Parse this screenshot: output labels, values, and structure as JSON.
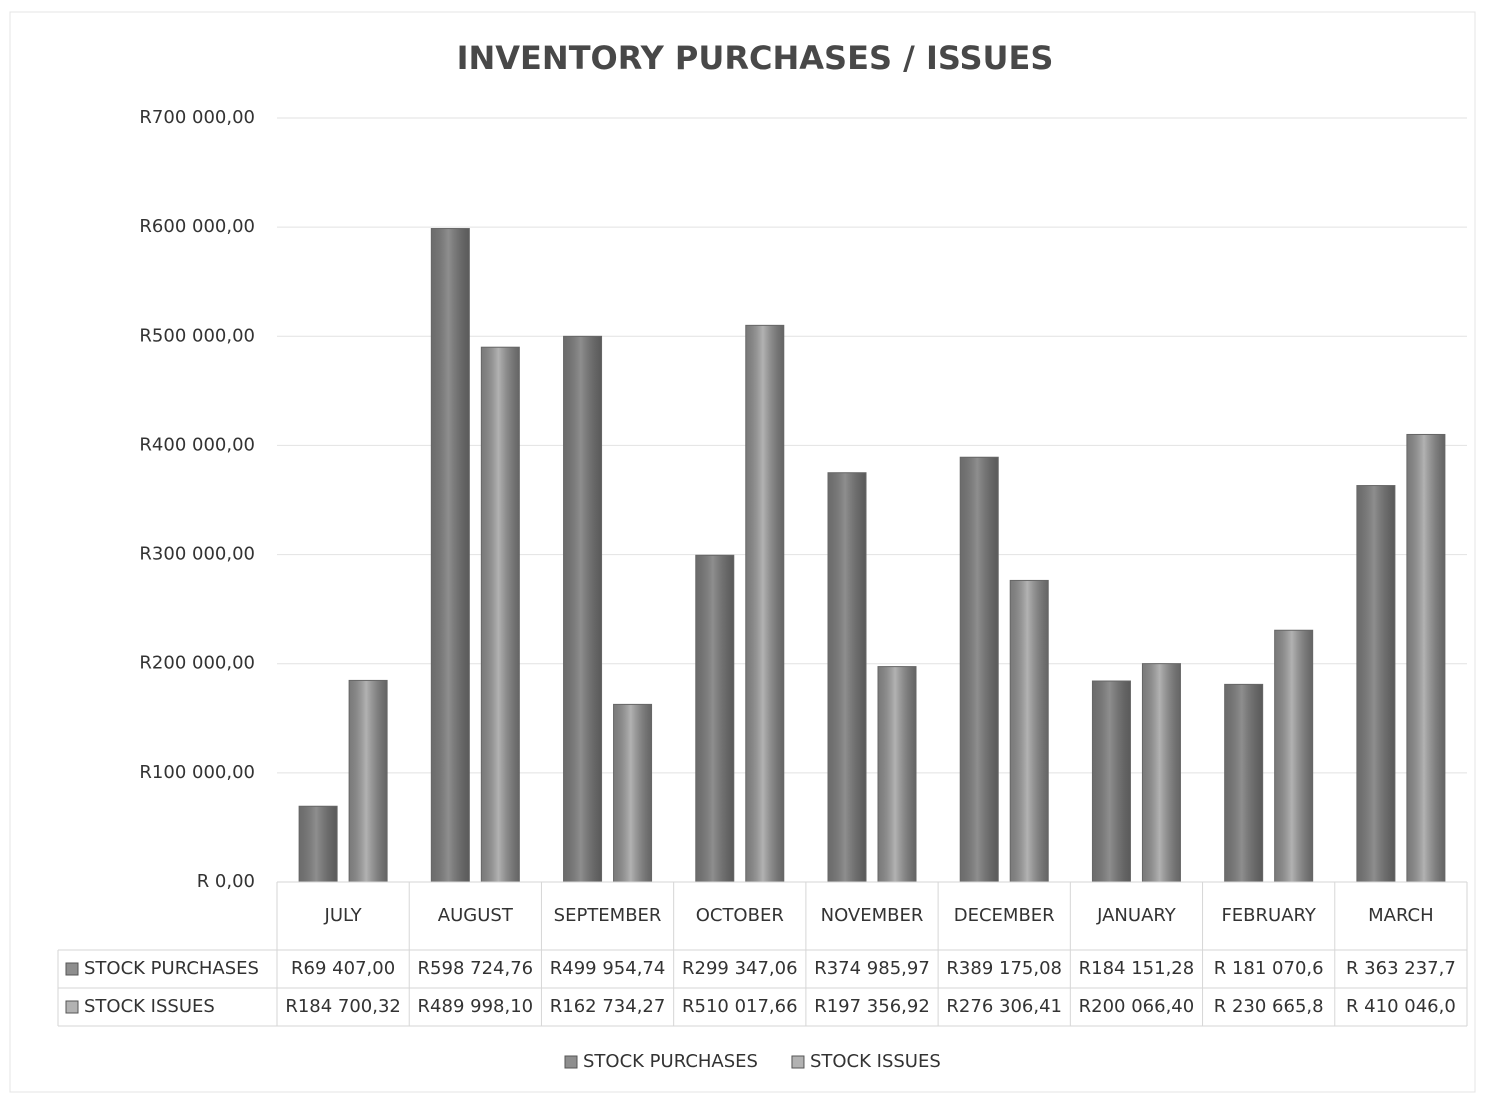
{
  "chart_data": {
    "type": "bar",
    "title": "INVENTORY PURCHASES / ISSUES",
    "categories": [
      "JULY",
      "AUGUST",
      "SEPTEMBER",
      "OCTOBER",
      "NOVEMBER",
      "DECEMBER",
      "JANUARY",
      "FEBRUARY",
      "MARCH"
    ],
    "series": [
      {
        "name": "STOCK PURCHASES",
        "color": "#8e8e8e",
        "values": [
          69407.0,
          598724.76,
          499954.74,
          299347.06,
          374985.97,
          389175.08,
          184151.28,
          181070.6,
          363237.7
        ],
        "value_labels": [
          "R69 407,00",
          "R598 724,76",
          "R499 954,74",
          "R299 347,06",
          "R374 985,97",
          "R389 175,08",
          "R184 151,28",
          "R 181 070,6",
          "R 363 237,7"
        ]
      },
      {
        "name": "STOCK ISSUES",
        "color": "#b2b2b2",
        "values": [
          184700.32,
          489998.1,
          162734.27,
          510017.66,
          197356.92,
          276306.41,
          200066.4,
          230665.8,
          410046.0
        ],
        "value_labels": [
          "R184 700,32",
          "R489 998,10",
          "R162 734,27",
          "R510 017,66",
          "R197 356,92",
          "R276 306,41",
          "R200 066,40",
          "R 230 665,8",
          "R 410 046,0"
        ]
      }
    ],
    "ylim": [
      0,
      700000
    ],
    "yticks": [
      {
        "value": 0,
        "label": "R 0,00"
      },
      {
        "value": 100000,
        "label": "R100 000,00"
      },
      {
        "value": 200000,
        "label": "R200 000,00"
      },
      {
        "value": 300000,
        "label": "R300 000,00"
      },
      {
        "value": 400000,
        "label": "R400 000,00"
      },
      {
        "value": 500000,
        "label": "R500 000,00"
      },
      {
        "value": 600000,
        "label": "R600 000,00"
      },
      {
        "value": 700000,
        "label": "R700 000,00"
      }
    ],
    "grid": true,
    "legend": "bottom"
  }
}
